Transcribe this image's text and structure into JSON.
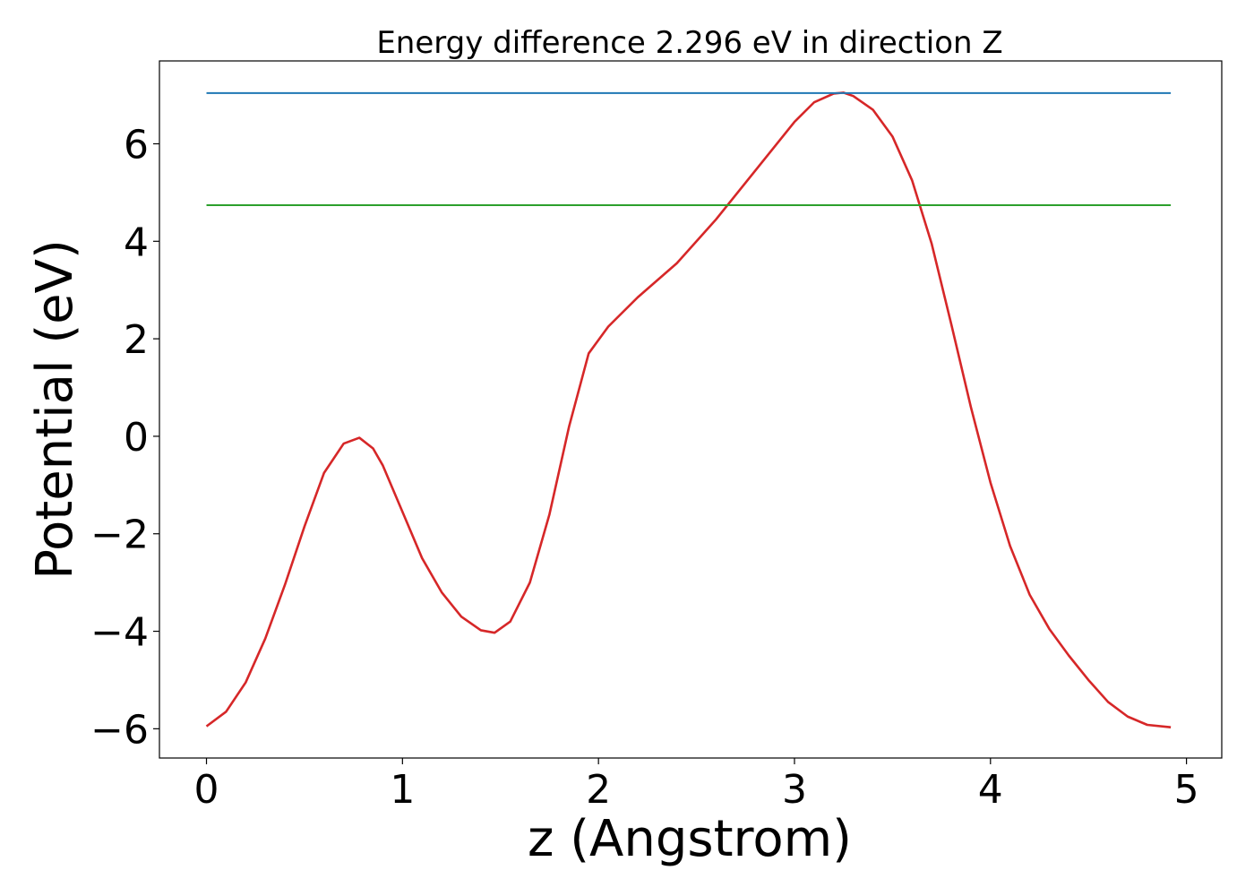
{
  "chart_data": {
    "type": "line",
    "title": "Energy difference 2.296 eV in direction Z",
    "xlabel": "z (Angstrom)",
    "ylabel": "Potential (eV)",
    "xlim": [
      -0.24,
      5.18
    ],
    "ylim": [
      -6.6,
      7.7
    ],
    "xticks": [
      0,
      1,
      2,
      3,
      4,
      5
    ],
    "xtick_labels": [
      "0",
      "1",
      "2",
      "3",
      "4",
      "5"
    ],
    "yticks": [
      -6,
      -4,
      -2,
      0,
      2,
      4,
      6
    ],
    "ytick_labels": [
      "−6",
      "−4",
      "−2",
      "0",
      "2",
      "4",
      "6"
    ],
    "grid": false,
    "series": [
      {
        "color": "#d62728",
        "x": [
          0,
          0.1,
          0.2,
          0.3,
          0.4,
          0.5,
          0.6,
          0.7,
          0.78,
          0.85,
          0.9,
          1.0,
          1.1,
          1.2,
          1.3,
          1.4,
          1.47,
          1.55,
          1.65,
          1.75,
          1.85,
          1.95,
          2.05,
          2.2,
          2.4,
          2.6,
          2.8,
          3.0,
          3.1,
          3.2,
          3.25,
          3.3,
          3.4,
          3.5,
          3.6,
          3.7,
          3.8,
          3.9,
          4.0,
          4.1,
          4.2,
          4.3,
          4.4,
          4.5,
          4.6,
          4.7,
          4.8,
          4.92
        ],
        "y": [
          -5.95,
          -5.65,
          -5.05,
          -4.15,
          -3.05,
          -1.85,
          -0.75,
          -0.15,
          -0.03,
          -0.25,
          -0.6,
          -1.55,
          -2.5,
          -3.2,
          -3.7,
          -3.98,
          -4.03,
          -3.8,
          -3.0,
          -1.6,
          0.2,
          1.7,
          2.25,
          2.85,
          3.55,
          4.45,
          5.45,
          6.45,
          6.85,
          7.03,
          7.05,
          6.98,
          6.7,
          6.15,
          5.25,
          3.95,
          2.3,
          0.6,
          -0.95,
          -2.25,
          -3.25,
          -3.95,
          -4.5,
          -5.0,
          -5.45,
          -5.75,
          -5.92,
          -5.97
        ]
      },
      {
        "color": "#1f77b4",
        "x": [
          0,
          4.92
        ],
        "y": [
          7.04,
          7.04
        ]
      },
      {
        "color": "#2ca02c",
        "x": [
          0,
          4.92
        ],
        "y": [
          4.74,
          4.74
        ]
      }
    ]
  }
}
